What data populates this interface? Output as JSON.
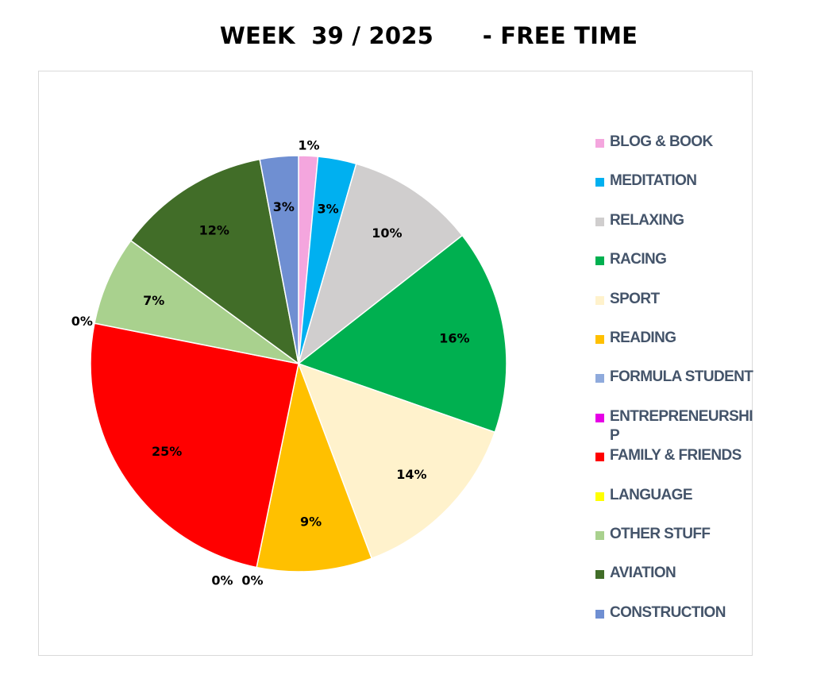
{
  "chart_data": {
    "type": "pie",
    "title": "WEEK  39 / 2025      - FREE TIME",
    "legend_position": "right",
    "slices": [
      {
        "label": "BLOG & BOOK",
        "value": 1.5,
        "display": "1%",
        "color": "#f4a6de"
      },
      {
        "label": "MEDITATION",
        "value": 3,
        "display": "3%",
        "color": "#00b0f0"
      },
      {
        "label": "RELAXING",
        "value": 10,
        "display": "10%",
        "color": "#d0cece"
      },
      {
        "label": "RACING",
        "value": 16,
        "display": "16%",
        "color": "#00b050"
      },
      {
        "label": "SPORT",
        "value": 14,
        "display": "14%",
        "color": "#fff2cc"
      },
      {
        "label": "READING",
        "value": 9,
        "display": "9%",
        "color": "#ffc000"
      },
      {
        "label": "FORMULA STUDENT",
        "value": 0,
        "display": "0%",
        "color": "#8faadc"
      },
      {
        "label": "ENTREPRENEURSHIP",
        "value": 0,
        "display": "0%",
        "color": "#e600e6"
      },
      {
        "label": "FAMILY & FRIENDS",
        "value": 25,
        "display": "25%",
        "color": "#ff0000"
      },
      {
        "label": "LANGUAGE",
        "value": 0,
        "display": "0%",
        "color": "#ffff00"
      },
      {
        "label": "OTHER STUFF",
        "value": 7,
        "display": "7%",
        "color": "#a9d18e"
      },
      {
        "label": "AVIATION",
        "value": 12,
        "display": "12%",
        "color": "#416d28"
      },
      {
        "label": "CONSTRUCTION",
        "value": 3,
        "display": "3%",
        "color": "#6f8fd2"
      }
    ]
  }
}
